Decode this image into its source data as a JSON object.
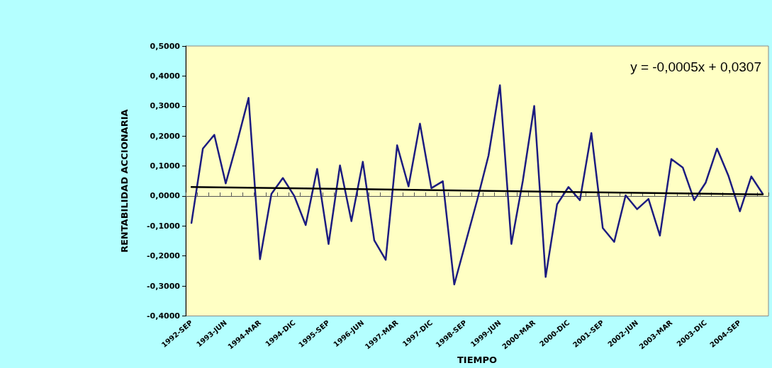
{
  "chart_data": {
    "type": "line",
    "xlabel": "TIEMPO",
    "ylabel": "RENTABILIDAD ACCIONARIA",
    "categories": [
      "1992-SEP",
      null,
      null,
      "1993-JUN",
      null,
      null,
      "1994-MAR",
      null,
      null,
      "1994-DIC",
      null,
      null,
      "1995-SEP",
      null,
      null,
      "1996-JUN",
      null,
      null,
      "1997-MAR",
      null,
      null,
      "1997-DIC",
      null,
      null,
      "1998-SEP",
      null,
      null,
      "1999-JUN",
      null,
      null,
      "2000-MAR",
      null,
      null,
      "2000-DIC",
      null,
      null,
      "2001-SEP",
      null,
      null,
      "2002-JUN",
      null,
      null,
      "2003-MAR",
      null,
      null,
      "2003-DIC",
      null,
      null,
      "2004-SEP",
      null,
      null
    ],
    "series": [
      {
        "color": "#1c1c80",
        "values": [
          -0.09,
          0.158,
          0.204,
          0.042,
          0.18,
          0.327,
          -0.211,
          0.007,
          0.06,
          0.0,
          -0.097,
          0.09,
          -0.16,
          0.102,
          -0.084,
          0.114,
          -0.148,
          -0.213,
          0.169,
          0.032,
          0.241,
          0.026,
          0.049,
          -0.295,
          -0.155,
          -0.015,
          0.135,
          0.369,
          -0.16,
          0.05,
          0.3,
          -0.27,
          -0.028,
          0.03,
          -0.014,
          0.21,
          -0.107,
          -0.153,
          0.002,
          -0.044,
          -0.01,
          -0.132,
          0.123,
          0.095,
          -0.014,
          0.044,
          0.158,
          0.067,
          -0.051,
          0.065,
          0.007
        ]
      },
      {
        "type": "line",
        "color": "#000000",
        "values": [
          0.03,
          null,
          null,
          null,
          null,
          null,
          null,
          null,
          null,
          null,
          null,
          null,
          null,
          null,
          null,
          null,
          null,
          null,
          null,
          null,
          null,
          null,
          null,
          null,
          null,
          null,
          null,
          null,
          null,
          null,
          null,
          null,
          null,
          null,
          null,
          null,
          null,
          null,
          null,
          null,
          null,
          null,
          null,
          null,
          null,
          null,
          null,
          null,
          null,
          null,
          0.005
        ]
      }
    ],
    "ylim": [
      -0.4,
      0.5
    ],
    "yticks": [
      {
        "value": -0.4,
        "label": "-0,4000"
      },
      {
        "value": -0.3,
        "label": "-0,3000"
      },
      {
        "value": -0.2,
        "label": "-0,2000"
      },
      {
        "value": -0.1,
        "label": "-0,1000"
      },
      {
        "value": 0,
        "label": "0,0000"
      },
      {
        "value": 0.1,
        "label": "0,1000"
      },
      {
        "value": 0.2,
        "label": "0,2000"
      },
      {
        "value": 0.3,
        "label": "0,3000"
      },
      {
        "value": 0.4,
        "label": "0,4000"
      },
      {
        "value": 0.5,
        "label": "0,5000"
      }
    ],
    "annotations": [
      "y = -0,0005x + 0,0307"
    ],
    "marker": "none",
    "line_style": "solid"
  }
}
